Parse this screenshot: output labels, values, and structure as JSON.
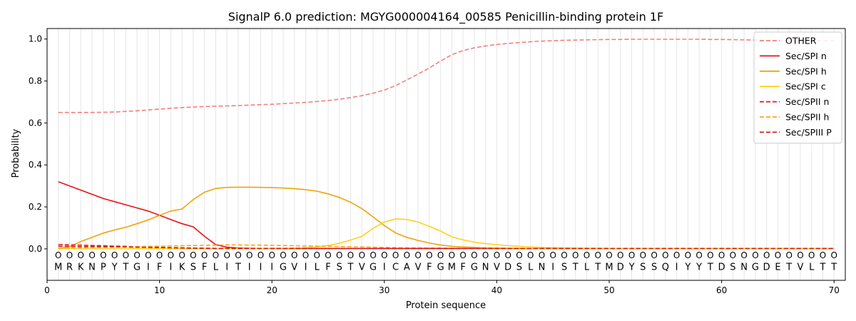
{
  "chart_data": {
    "type": "line",
    "title": "SignalP 6.0 prediction: MGYG000004164_00585 Penicillin-binding protein 1F",
    "xlabel": "Protein sequence",
    "ylabel": "Probability",
    "xlim": [
      0,
      71
    ],
    "ylim": [
      -0.15,
      1.05
    ],
    "xticks": [
      0,
      10,
      20,
      30,
      40,
      50,
      60,
      70
    ],
    "yticks": [
      0.0,
      0.2,
      0.4,
      0.6,
      0.8,
      1.0
    ],
    "xtick_labels": [
      "0",
      "10",
      "20",
      "30",
      "40",
      "50",
      "60",
      "70"
    ],
    "ytick_labels": [
      "0.0",
      "0.2",
      "0.4",
      "0.6",
      "0.8",
      "1.0"
    ],
    "legend_position": "top-right",
    "grid": "vertical lines at each residue",
    "sequence": [
      "M",
      "R",
      "K",
      "N",
      "P",
      "Y",
      "T",
      "G",
      "I",
      "F",
      "I",
      "K",
      "S",
      "F",
      "L",
      "I",
      "T",
      "I",
      "I",
      "I",
      "G",
      "V",
      "I",
      "L",
      "F",
      "S",
      "T",
      "V",
      "G",
      "I",
      "C",
      "A",
      "V",
      "F",
      "G",
      "M",
      "F",
      "G",
      "N",
      "V",
      "D",
      "S",
      "L",
      "N",
      "I",
      "S",
      "T",
      "L",
      "T",
      "M",
      "D",
      "Y",
      "S",
      "S",
      "Q",
      "I",
      "Y",
      "Y",
      "T",
      "D",
      "S",
      "N",
      "G",
      "D",
      "E",
      "T",
      "V",
      "L",
      "T",
      "T"
    ],
    "position_marker": "O",
    "series": [
      {
        "name": "OTHER",
        "color": "#f08080",
        "dash": "dashed",
        "values": [
          0.65,
          0.65,
          0.65,
          0.65,
          0.651,
          0.652,
          0.655,
          0.658,
          0.662,
          0.666,
          0.67,
          0.673,
          0.676,
          0.678,
          0.68,
          0.681,
          0.683,
          0.685,
          0.687,
          0.689,
          0.692,
          0.695,
          0.698,
          0.702,
          0.707,
          0.713,
          0.721,
          0.73,
          0.742,
          0.757,
          0.778,
          0.805,
          0.833,
          0.862,
          0.895,
          0.925,
          0.945,
          0.958,
          0.967,
          0.974,
          0.979,
          0.983,
          0.987,
          0.99,
          0.992,
          0.994,
          0.995,
          0.996,
          0.997,
          0.998,
          0.998,
          0.999,
          0.999,
          0.999,
          0.999,
          0.999,
          0.999,
          0.999,
          0.998,
          0.998,
          0.997,
          0.996,
          0.995,
          0.994,
          0.993,
          0.992,
          0.992,
          0.991,
          0.992,
          0.993
        ]
      },
      {
        "name": "Sec/SPI n",
        "color": "#e8141a",
        "dash": "solid",
        "values": [
          0.32,
          0.3,
          0.28,
          0.26,
          0.24,
          0.225,
          0.21,
          0.195,
          0.18,
          0.16,
          0.14,
          0.12,
          0.105,
          0.06,
          0.02,
          0.008,
          0.004,
          0.003,
          0.002,
          0.002,
          0.002,
          0.002,
          0.002,
          0.002,
          0.002,
          0.002,
          0.002,
          0.002,
          0.002,
          0.002,
          0.002,
          0.002,
          0.002,
          0.002,
          0.002,
          0.002,
          0.002,
          0.002,
          0.002,
          0.002,
          0.002,
          0.002,
          0.002,
          0.002,
          0.002,
          0.002,
          0.002,
          0.002,
          0.002,
          0.002,
          0.002,
          0.002,
          0.002,
          0.002,
          0.002,
          0.002,
          0.002,
          0.002,
          0.002,
          0.002,
          0.002,
          0.002,
          0.002,
          0.002,
          0.002,
          0.002,
          0.002,
          0.002,
          0.002,
          0.002
        ]
      },
      {
        "name": "Sec/SPI h",
        "color": "#f0a30a",
        "dash": "solid",
        "values": [
          0.002,
          0.01,
          0.035,
          0.055,
          0.075,
          0.09,
          0.103,
          0.12,
          0.138,
          0.16,
          0.18,
          0.19,
          0.235,
          0.27,
          0.288,
          0.293,
          0.294,
          0.294,
          0.293,
          0.292,
          0.29,
          0.287,
          0.282,
          0.275,
          0.262,
          0.245,
          0.222,
          0.192,
          0.152,
          0.111,
          0.076,
          0.055,
          0.04,
          0.028,
          0.018,
          0.012,
          0.009,
          0.007,
          0.005,
          0.004,
          0.003,
          0.003,
          0.002,
          0.002,
          0.002,
          0.002,
          0.002,
          0.002,
          0.002,
          0.002,
          0.002,
          0.002,
          0.002,
          0.002,
          0.002,
          0.002,
          0.002,
          0.002,
          0.002,
          0.002,
          0.002,
          0.002,
          0.002,
          0.002,
          0.002,
          0.002,
          0.002,
          0.002,
          0.002,
          0.002
        ]
      },
      {
        "name": "Sec/SPI c",
        "color": "#ffd21a",
        "dash": "solid",
        "values": [
          0.001,
          0.001,
          0.001,
          0.001,
          0.001,
          0.001,
          0.001,
          0.001,
          0.001,
          0.001,
          0.001,
          0.001,
          0.001,
          0.001,
          0.001,
          0.002,
          0.002,
          0.002,
          0.002,
          0.003,
          0.003,
          0.004,
          0.006,
          0.009,
          0.016,
          0.027,
          0.042,
          0.06,
          0.098,
          0.128,
          0.143,
          0.14,
          0.128,
          0.107,
          0.085,
          0.057,
          0.043,
          0.032,
          0.025,
          0.02,
          0.015,
          0.012,
          0.009,
          0.007,
          0.006,
          0.005,
          0.004,
          0.003,
          0.003,
          0.002,
          0.002,
          0.002,
          0.002,
          0.002,
          0.002,
          0.002,
          0.002,
          0.002,
          0.002,
          0.002,
          0.002,
          0.002,
          0.002,
          0.002,
          0.002,
          0.002,
          0.002,
          0.002,
          0.002,
          0.002
        ]
      },
      {
        "name": "Sec/SPII n",
        "color": "#e8141a",
        "dash": "dashed",
        "values": [
          0.02,
          0.019,
          0.018,
          0.016,
          0.015,
          0.013,
          0.012,
          0.01,
          0.009,
          0.007,
          0.006,
          0.005,
          0.004,
          0.003,
          0.002,
          0.002,
          0.002,
          0.002,
          0.002,
          0.002,
          0.002,
          0.002,
          0.002,
          0.002,
          0.002,
          0.002,
          0.002,
          0.002,
          0.002,
          0.002,
          0.002,
          0.002,
          0.002,
          0.002,
          0.002,
          0.002,
          0.002,
          0.002,
          0.002,
          0.002,
          0.002,
          0.002,
          0.002,
          0.002,
          0.002,
          0.002,
          0.002,
          0.002,
          0.002,
          0.002,
          0.002,
          0.002,
          0.002,
          0.002,
          0.002,
          0.002,
          0.002,
          0.002,
          0.002,
          0.002,
          0.002,
          0.002,
          0.002,
          0.002,
          0.002,
          0.002,
          0.002,
          0.002,
          0.002,
          0.002
        ]
      },
      {
        "name": "Sec/SPII h",
        "color": "#ffa31a",
        "dash": "dashed",
        "values": [
          0.004,
          0.005,
          0.006,
          0.007,
          0.008,
          0.009,
          0.01,
          0.011,
          0.012,
          0.013,
          0.014,
          0.015,
          0.016,
          0.017,
          0.018,
          0.019,
          0.019,
          0.018,
          0.018,
          0.017,
          0.016,
          0.015,
          0.014,
          0.013,
          0.012,
          0.011,
          0.01,
          0.009,
          0.008,
          0.007,
          0.006,
          0.005,
          0.005,
          0.004,
          0.004,
          0.003,
          0.003,
          0.003,
          0.003,
          0.002,
          0.002,
          0.002,
          0.002,
          0.002,
          0.002,
          0.002,
          0.002,
          0.002,
          0.002,
          0.002,
          0.002,
          0.002,
          0.002,
          0.002,
          0.002,
          0.002,
          0.002,
          0.002,
          0.002,
          0.002,
          0.002,
          0.002,
          0.002,
          0.002,
          0.002,
          0.002,
          0.002,
          0.002,
          0.002,
          0.002
        ]
      },
      {
        "name": "Sec/SPIII P",
        "color": "#cc1f1f",
        "dash": "dashed",
        "values": [
          0.012,
          0.012,
          0.011,
          0.011,
          0.01,
          0.01,
          0.009,
          0.008,
          0.007,
          0.006,
          0.005,
          0.004,
          0.003,
          0.003,
          0.002,
          0.002,
          0.002,
          0.002,
          0.002,
          0.002,
          0.002,
          0.002,
          0.002,
          0.002,
          0.002,
          0.002,
          0.002,
          0.002,
          0.002,
          0.002,
          0.002,
          0.002,
          0.002,
          0.002,
          0.002,
          0.002,
          0.002,
          0.002,
          0.002,
          0.002,
          0.002,
          0.002,
          0.002,
          0.002,
          0.002,
          0.002,
          0.002,
          0.002,
          0.002,
          0.002,
          0.002,
          0.002,
          0.002,
          0.002,
          0.002,
          0.002,
          0.002,
          0.002,
          0.002,
          0.002,
          0.002,
          0.002,
          0.002,
          0.002,
          0.002,
          0.002,
          0.002,
          0.002,
          0.002,
          0.002
        ]
      }
    ]
  }
}
